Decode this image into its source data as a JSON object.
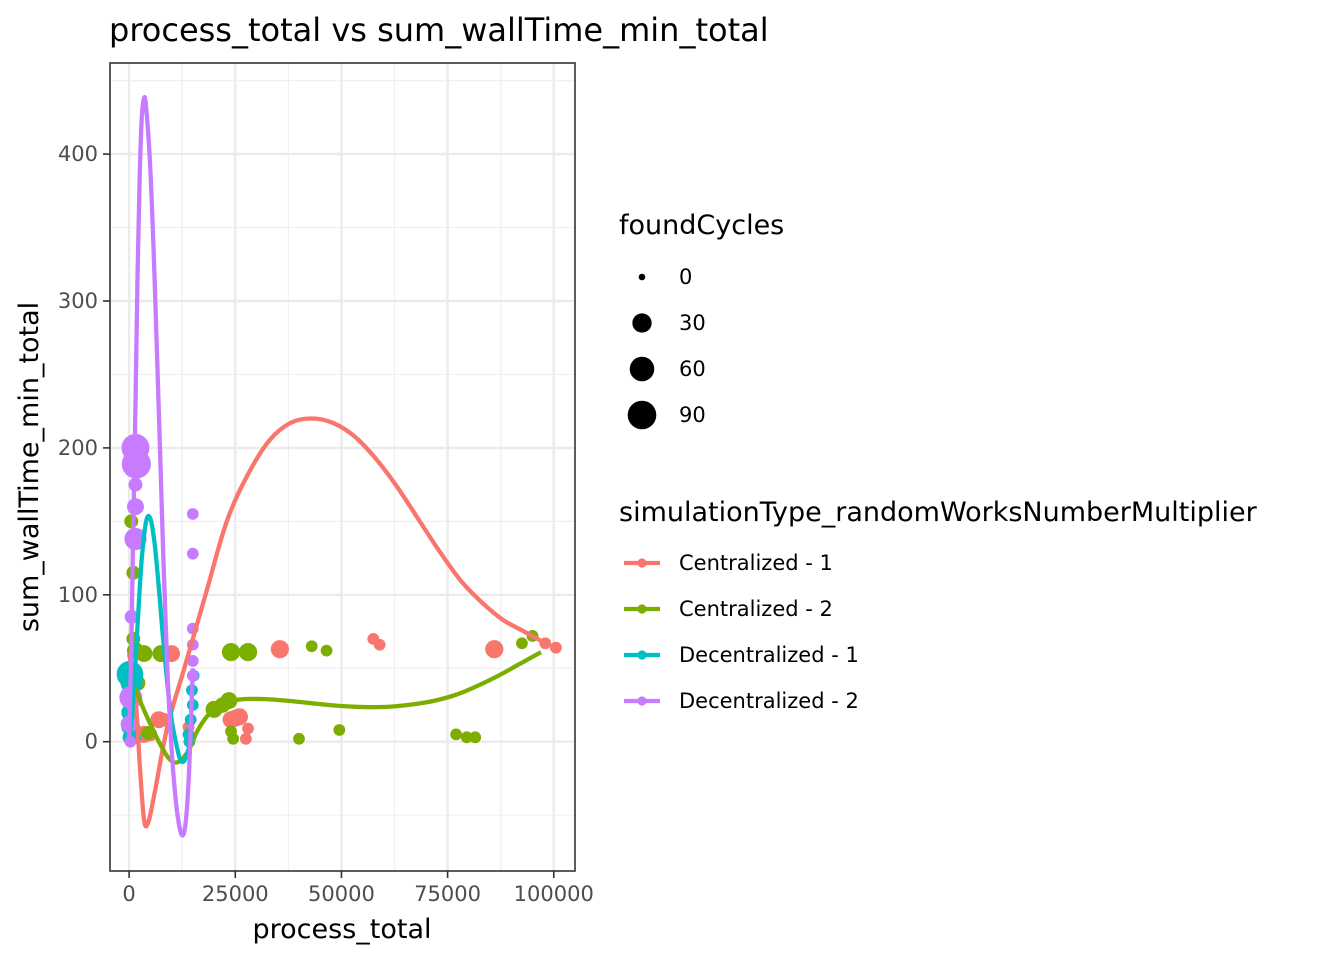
{
  "chart_data": {
    "type": "scatter",
    "title": "process_total  vs  sum_wallTime_min_total",
    "xlabel": "process_total",
    "ylabel": "sum_wallTime_min_total",
    "xlim": [
      -4500,
      105000
    ],
    "ylim": [
      -88,
      462
    ],
    "x_ticks": [
      0,
      25000,
      50000,
      75000,
      100000
    ],
    "x_tick_labels": [
      "0",
      "25000",
      "50000",
      "75000",
      "100000"
    ],
    "y_ticks": [
      0,
      100,
      200,
      300,
      400
    ],
    "y_tick_labels": [
      "0",
      "100",
      "200",
      "300",
      "400"
    ],
    "grid": true,
    "legend_position": "right",
    "size_legend": {
      "title": "foundCycles",
      "entries": [
        {
          "label": "0",
          "value": 0
        },
        {
          "label": "30",
          "value": 30
        },
        {
          "label": "60",
          "value": 60
        },
        {
          "label": "90",
          "value": 90
        }
      ]
    },
    "color_legend": {
      "title": "simulationType_randomWorksNumberMultiplier"
    },
    "series": [
      {
        "name": "Centralized - 1",
        "color": "#F8766D",
        "points": [
          {
            "x": 1000,
            "y": 10,
            "size": 10
          },
          {
            "x": 3500,
            "y": 5,
            "size": 20
          },
          {
            "x": 5000,
            "y": 5,
            "size": 10
          },
          {
            "x": 7000,
            "y": 15,
            "size": 20
          },
          {
            "x": 8000,
            "y": 15,
            "size": 10
          },
          {
            "x": 10000,
            "y": 60,
            "size": 20
          },
          {
            "x": 14000,
            "y": 10,
            "size": 5
          },
          {
            "x": 24000,
            "y": 15,
            "size": 20
          },
          {
            "x": 25000,
            "y": 16,
            "size": 20
          },
          {
            "x": 26000,
            "y": 17,
            "size": 20
          },
          {
            "x": 27500,
            "y": 2,
            "size": 5
          },
          {
            "x": 28000,
            "y": 9,
            "size": 5
          },
          {
            "x": 35500,
            "y": 63,
            "size": 25
          },
          {
            "x": 57500,
            "y": 70,
            "size": 5
          },
          {
            "x": 59000,
            "y": 66,
            "size": 5
          },
          {
            "x": 86000,
            "y": 63,
            "size": 25
          },
          {
            "x": 98000,
            "y": 67,
            "size": 5
          },
          {
            "x": 100500,
            "y": 64,
            "size": 5
          }
        ],
        "smooth": [
          {
            "x": 0,
            "y": 60
          },
          {
            "x": 1500,
            "y": 30
          },
          {
            "x": 2500,
            "y": -15
          },
          {
            "x": 3500,
            "y": -53
          },
          {
            "x": 4500,
            "y": -55
          },
          {
            "x": 6000,
            "y": -35
          },
          {
            "x": 9000,
            "y": 10
          },
          {
            "x": 13000,
            "y": 50
          },
          {
            "x": 18000,
            "y": 100
          },
          {
            "x": 23000,
            "y": 150
          },
          {
            "x": 28000,
            "y": 182
          },
          {
            "x": 33000,
            "y": 205
          },
          {
            "x": 38000,
            "y": 217
          },
          {
            "x": 43000,
            "y": 220
          },
          {
            "x": 48000,
            "y": 217
          },
          {
            "x": 53000,
            "y": 208
          },
          {
            "x": 58000,
            "y": 193
          },
          {
            "x": 63000,
            "y": 174
          },
          {
            "x": 68000,
            "y": 152
          },
          {
            "x": 73000,
            "y": 130
          },
          {
            "x": 78000,
            "y": 110
          },
          {
            "x": 83000,
            "y": 95
          },
          {
            "x": 88000,
            "y": 83
          },
          {
            "x": 93000,
            "y": 75
          },
          {
            "x": 98000,
            "y": 67
          }
        ]
      },
      {
        "name": "Centralized - 2",
        "color": "#7CAE00",
        "points": [
          {
            "x": 500,
            "y": 150,
            "size": 10
          },
          {
            "x": 1000,
            "y": 115,
            "size": 10
          },
          {
            "x": 1000,
            "y": 70,
            "size": 10
          },
          {
            "x": 1500,
            "y": 62,
            "size": 20
          },
          {
            "x": 2000,
            "y": 40,
            "size": 15
          },
          {
            "x": 3500,
            "y": 60,
            "size": 20
          },
          {
            "x": 4500,
            "y": 6,
            "size": 10
          },
          {
            "x": 7500,
            "y": 60,
            "size": 20
          },
          {
            "x": 20000,
            "y": 22,
            "size": 20
          },
          {
            "x": 22000,
            "y": 25,
            "size": 15
          },
          {
            "x": 23500,
            "y": 28,
            "size": 20
          },
          {
            "x": 24000,
            "y": 7,
            "size": 5
          },
          {
            "x": 24500,
            "y": 2,
            "size": 5
          },
          {
            "x": 24000,
            "y": 61,
            "size": 25
          },
          {
            "x": 28000,
            "y": 61,
            "size": 25
          },
          {
            "x": 40000,
            "y": 2,
            "size": 5
          },
          {
            "x": 43000,
            "y": 65,
            "size": 5
          },
          {
            "x": 46500,
            "y": 62,
            "size": 5
          },
          {
            "x": 49500,
            "y": 8,
            "size": 5
          },
          {
            "x": 77000,
            "y": 5,
            "size": 5
          },
          {
            "x": 79500,
            "y": 3,
            "size": 5
          },
          {
            "x": 81500,
            "y": 3,
            "size": 5
          },
          {
            "x": 92500,
            "y": 67,
            "size": 5
          },
          {
            "x": 95000,
            "y": 72,
            "size": 5
          }
        ],
        "smooth": [
          {
            "x": 1000,
            "y": 40
          },
          {
            "x": 3000,
            "y": 25
          },
          {
            "x": 5000,
            "y": 12
          },
          {
            "x": 7000,
            "y": 0
          },
          {
            "x": 9000,
            "y": -10
          },
          {
            "x": 10500,
            "y": -14
          },
          {
            "x": 12000,
            "y": -13
          },
          {
            "x": 14000,
            "y": -6
          },
          {
            "x": 16000,
            "y": 7
          },
          {
            "x": 18000,
            "y": 16
          },
          {
            "x": 20000,
            "y": 22
          },
          {
            "x": 23000,
            "y": 27
          },
          {
            "x": 27000,
            "y": 29
          },
          {
            "x": 32000,
            "y": 29
          },
          {
            "x": 37000,
            "y": 28
          },
          {
            "x": 42000,
            "y": 26.5
          },
          {
            "x": 47000,
            "y": 25
          },
          {
            "x": 52000,
            "y": 24
          },
          {
            "x": 57000,
            "y": 23.5
          },
          {
            "x": 62000,
            "y": 24
          },
          {
            "x": 67000,
            "y": 25.5
          },
          {
            "x": 72000,
            "y": 28
          },
          {
            "x": 77000,
            "y": 32
          },
          {
            "x": 82000,
            "y": 38
          },
          {
            "x": 87000,
            "y": 45
          },
          {
            "x": 92000,
            "y": 53
          },
          {
            "x": 97000,
            "y": 61
          }
        ]
      },
      {
        "name": "Decentralized - 1",
        "color": "#00BFC4",
        "points": [
          {
            "x": 200,
            "y": 46,
            "size": 75
          },
          {
            "x": 600,
            "y": 40,
            "size": 45
          },
          {
            "x": 300,
            "y": 30,
            "size": 30
          },
          {
            "x": 150,
            "y": 20,
            "size": 20
          },
          {
            "x": 0,
            "y": 10,
            "size": 15
          },
          {
            "x": 100,
            "y": 3,
            "size": 10
          },
          {
            "x": 1200,
            "y": 3,
            "size": 10
          },
          {
            "x": 14000,
            "y": 5,
            "size": 5
          },
          {
            "x": 14500,
            "y": 15,
            "size": 5
          },
          {
            "x": 15000,
            "y": 25,
            "size": 5
          },
          {
            "x": 14800,
            "y": 35,
            "size": 5
          },
          {
            "x": 15200,
            "y": 45,
            "size": 5
          },
          {
            "x": 14200,
            "y": 0,
            "size": 5
          }
        ],
        "smooth": [
          {
            "x": 0,
            "y": 0
          },
          {
            "x": 1000,
            "y": 30
          },
          {
            "x": 2000,
            "y": 80
          },
          {
            "x": 3000,
            "y": 125
          },
          {
            "x": 4000,
            "y": 150
          },
          {
            "x": 5000,
            "y": 152
          },
          {
            "x": 6000,
            "y": 135
          },
          {
            "x": 7000,
            "y": 105
          },
          {
            "x": 8000,
            "y": 70
          },
          {
            "x": 9000,
            "y": 40
          },
          {
            "x": 10000,
            "y": 15
          },
          {
            "x": 11000,
            "y": 0
          },
          {
            "x": 12000,
            "y": -12
          },
          {
            "x": 13000,
            "y": -13
          },
          {
            "x": 14000,
            "y": -5
          },
          {
            "x": 15000,
            "y": 5
          }
        ]
      },
      {
        "name": "Decentralized - 2",
        "color": "#C77CFF",
        "points": [
          {
            "x": 1500,
            "y": 200,
            "size": 85
          },
          {
            "x": 1700,
            "y": 189,
            "size": 95
          },
          {
            "x": 1500,
            "y": 175,
            "size": 10
          },
          {
            "x": 1500,
            "y": 160,
            "size": 20
          },
          {
            "x": 1500,
            "y": 138,
            "size": 45
          },
          {
            "x": 600,
            "y": 85,
            "size": 10
          },
          {
            "x": 400,
            "y": 30,
            "size": 50
          },
          {
            "x": 0,
            "y": 12,
            "size": 20
          },
          {
            "x": 300,
            "y": 0,
            "size": 5
          },
          {
            "x": 15000,
            "y": 155,
            "size": 5
          },
          {
            "x": 15000,
            "y": 128,
            "size": 5
          },
          {
            "x": 15000,
            "y": 77,
            "size": 5
          },
          {
            "x": 15000,
            "y": 66,
            "size": 5
          },
          {
            "x": 15000,
            "y": 55,
            "size": 5
          },
          {
            "x": 15000,
            "y": 45,
            "size": 5
          }
        ],
        "smooth": [
          {
            "x": 0,
            "y": 0
          },
          {
            "x": 500,
            "y": 60
          },
          {
            "x": 1000,
            "y": 150
          },
          {
            "x": 1500,
            "y": 230
          },
          {
            "x": 2000,
            "y": 320
          },
          {
            "x": 2500,
            "y": 385
          },
          {
            "x": 3000,
            "y": 425
          },
          {
            "x": 3500,
            "y": 438
          },
          {
            "x": 4000,
            "y": 432
          },
          {
            "x": 5000,
            "y": 390
          },
          {
            "x": 6000,
            "y": 315
          },
          {
            "x": 7000,
            "y": 225
          },
          {
            "x": 8000,
            "y": 130
          },
          {
            "x": 9000,
            "y": 50
          },
          {
            "x": 10000,
            "y": -5
          },
          {
            "x": 11000,
            "y": -40
          },
          {
            "x": 12000,
            "y": -60
          },
          {
            "x": 12800,
            "y": -63
          },
          {
            "x": 13500,
            "y": -50
          },
          {
            "x": 14200,
            "y": -15
          },
          {
            "x": 15000,
            "y": 50
          }
        ]
      }
    ]
  }
}
